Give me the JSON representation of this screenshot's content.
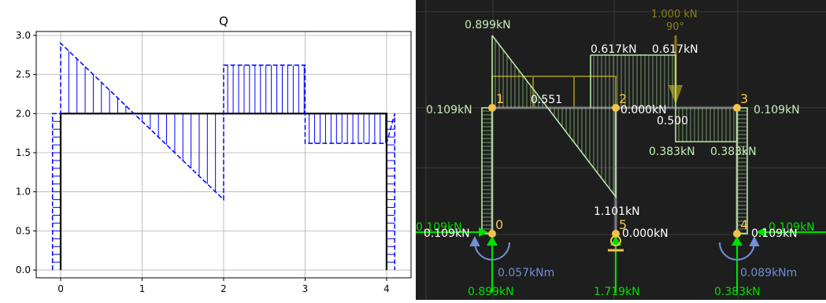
{
  "left_plot": {
    "title": "Q",
    "xlim": [
      -0.3,
      4.3
    ],
    "ylim": [
      -0.1,
      3.05
    ],
    "x_ticks": [
      0,
      1,
      2,
      3,
      4
    ],
    "y_ticks": [
      0.0,
      0.5,
      1.0,
      1.5,
      2.0,
      2.5,
      3.0
    ],
    "colors": {
      "frame": "#000000",
      "diagram": "#0000ff",
      "grid": "#b0b0b0"
    }
  },
  "chart_data": {
    "type": "line",
    "title": "Q",
    "xlabel": "",
    "ylabel": "",
    "xlim": [
      -0.3,
      4.3
    ],
    "ylim": [
      -0.1,
      3.05
    ],
    "grid": true,
    "series": [
      {
        "values": [
          [
            0,
            0
          ],
          [
            0,
            2
          ],
          [
            4,
            2
          ],
          [
            4,
            0
          ]
        ]
      },
      {
        "values": [
          [
            -0.1,
            0
          ],
          [
            -0.1,
            2
          ],
          [
            0,
            2
          ],
          [
            0,
            2.9
          ],
          [
            2,
            0.9
          ],
          [
            2,
            2.62
          ],
          [
            3,
            2.62
          ],
          [
            3,
            1.62
          ],
          [
            4,
            1.62
          ],
          [
            4.1,
            2
          ],
          [
            4.1,
            0
          ]
        ]
      }
    ]
  },
  "right_view": {
    "colors": {
      "background": "#1e1e1e",
      "grid": "#3a3a3a",
      "node": "#f2c24a",
      "diagram": "#b6e6a2",
      "distributed_load": "#8a7d12",
      "reaction": "#00e000",
      "moment": "#6f8fd8",
      "label": "#ffffff"
    },
    "nodes": [
      {
        "id": "0"
      },
      {
        "id": "1"
      },
      {
        "id": "2"
      },
      {
        "id": "3"
      },
      {
        "id": "4"
      },
      {
        "id": "5"
      }
    ],
    "labels": {
      "l_top": "0.899kN",
      "l_0617a": "0.617kN",
      "l_0617b": "0.617kN",
      "l_load_value": "1.000 kN",
      "l_load_angle": "90°",
      "l_0551": "0.551",
      "l_0109_left": "0.109kN",
      "l_0000_top": "0.000kN",
      "l_0500": "0.500",
      "l_0109_right": "0.109kN",
      "l_0383a": "0.383kN",
      "l_0383b": "0.383kN",
      "l_1101": "1.101kN",
      "l_0109_green_left": "0.109kN",
      "l_0109_white_left": "0.109kN",
      "l_0000_bottom": "0.000kN",
      "l_0109_green_right": "0.109kN",
      "l_0109_white_right": "0.109kN",
      "l_moment_left": "0.057kNm",
      "l_moment_right": "0.089kNm",
      "l_reac_0": "0.899kN",
      "l_reac_5": "1.719kN",
      "l_reac_4": "0.383kN"
    }
  }
}
